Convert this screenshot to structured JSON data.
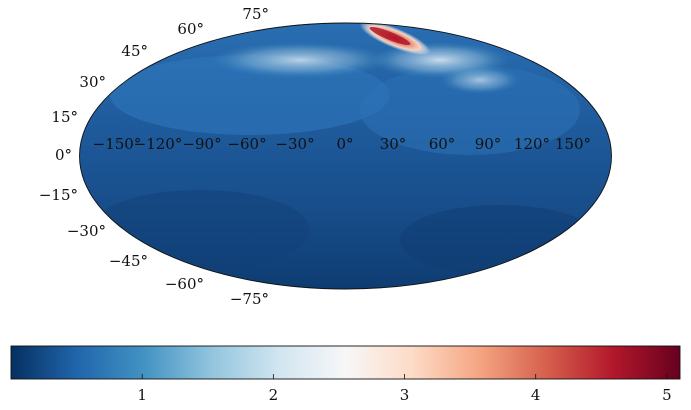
{
  "map": {
    "projection": "mollweide",
    "longitude_labels": [
      "−150°",
      "−120°",
      "−90°",
      "−60°",
      "−30°",
      "0°",
      "30°",
      "60°",
      "90°",
      "120°",
      "150°"
    ],
    "latitude_labels": [
      "75°",
      "60°",
      "45°",
      "30°",
      "15°",
      "0°",
      "−15°",
      "−30°",
      "−45°",
      "−60°",
      "−75°"
    ]
  },
  "colorbar": {
    "colormap": "RdBu_r",
    "range": [
      0.0,
      5.1
    ],
    "tick_labels": [
      "1",
      "2",
      "3",
      "4",
      "5"
    ]
  }
}
